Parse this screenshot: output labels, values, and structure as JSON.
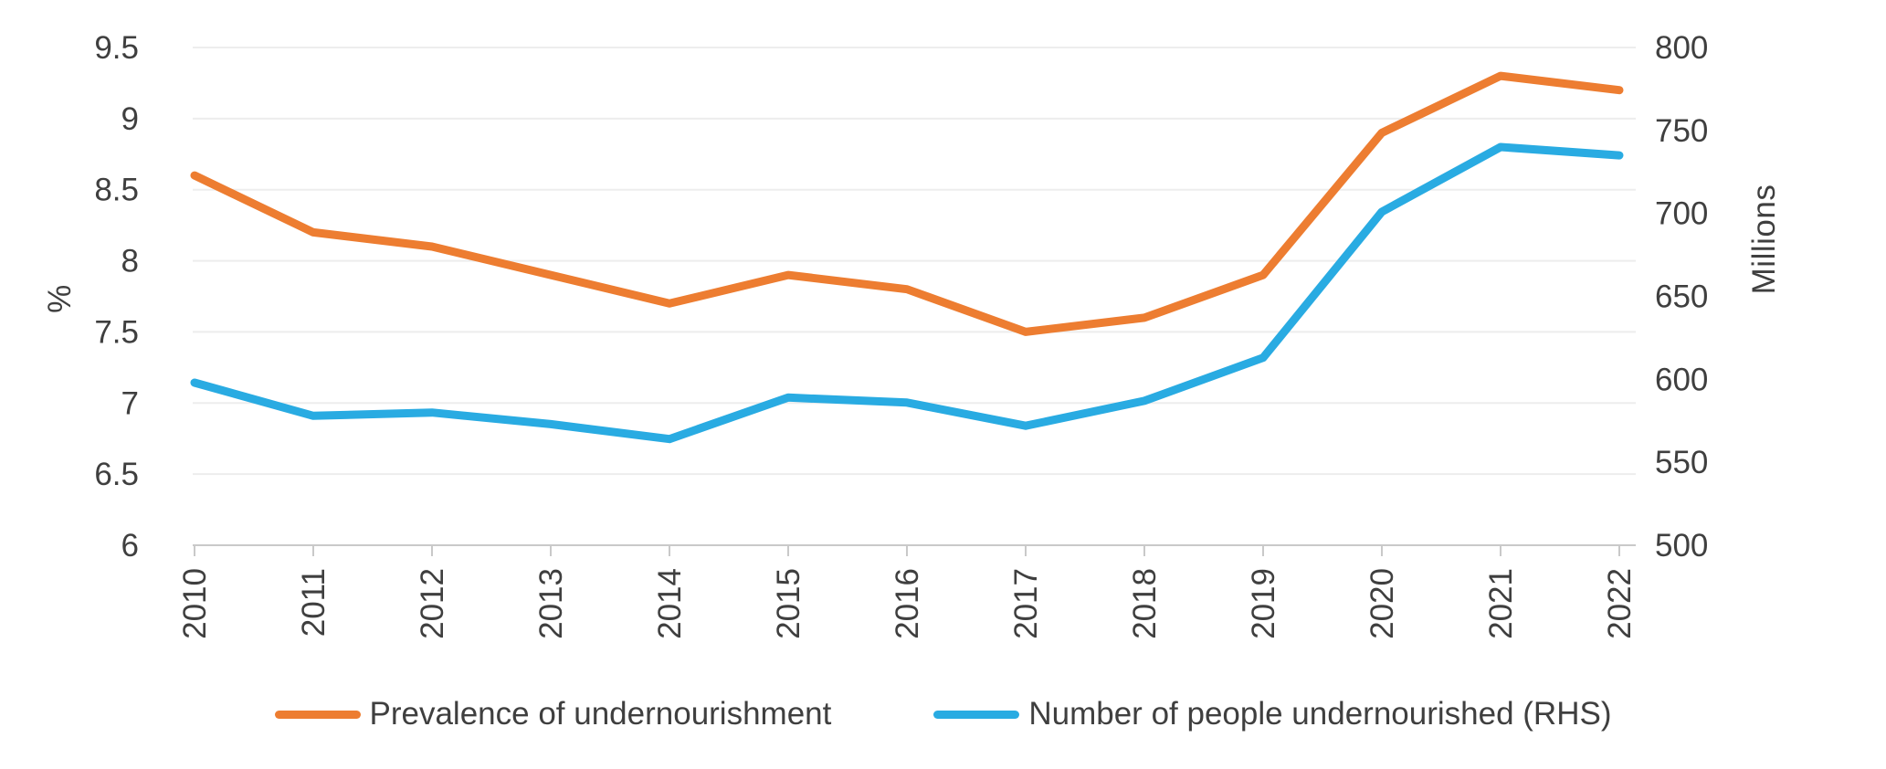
{
  "chart_data": {
    "type": "line",
    "x": [
      "2010",
      "2011",
      "2012",
      "2013",
      "2014",
      "2015",
      "2016",
      "2017",
      "2018",
      "2019",
      "2020",
      "2021",
      "2022"
    ],
    "series": [
      {
        "name": "Prevalence of undernourishment",
        "axis": "left",
        "unit": "%",
        "color": "#ED7D31",
        "values": [
          8.6,
          8.2,
          8.1,
          7.9,
          7.7,
          7.9,
          7.8,
          7.5,
          7.6,
          7.9,
          8.9,
          9.3,
          9.2
        ]
      },
      {
        "name": "Number of people undernourished (RHS)",
        "axis": "right",
        "unit": "Millions",
        "color": "#29ABE2",
        "values": [
          598,
          578,
          580,
          573,
          564,
          589,
          586,
          572,
          587,
          613,
          701,
          740,
          735
        ]
      }
    ],
    "left_axis": {
      "label": "%",
      "min": 6,
      "max": 9.5,
      "step": 0.5,
      "tick_labels": [
        "9.5",
        "9",
        "8.5",
        "8",
        "7.5",
        "7",
        "6.5",
        "6"
      ]
    },
    "right_axis": {
      "label": "Millions",
      "min": 500,
      "max": 800,
      "step": 50,
      "tick_labels": [
        "800",
        "750",
        "700",
        "650",
        "600",
        "550",
        "500"
      ]
    },
    "grid": true,
    "legend_position": "bottom",
    "colors": {
      "gridline": "#EDEDED",
      "axis_line": "#C9C9C9",
      "tick_mark": "#C9C9C9",
      "text": "#3F3F3F",
      "background": "#FFFFFF"
    }
  }
}
